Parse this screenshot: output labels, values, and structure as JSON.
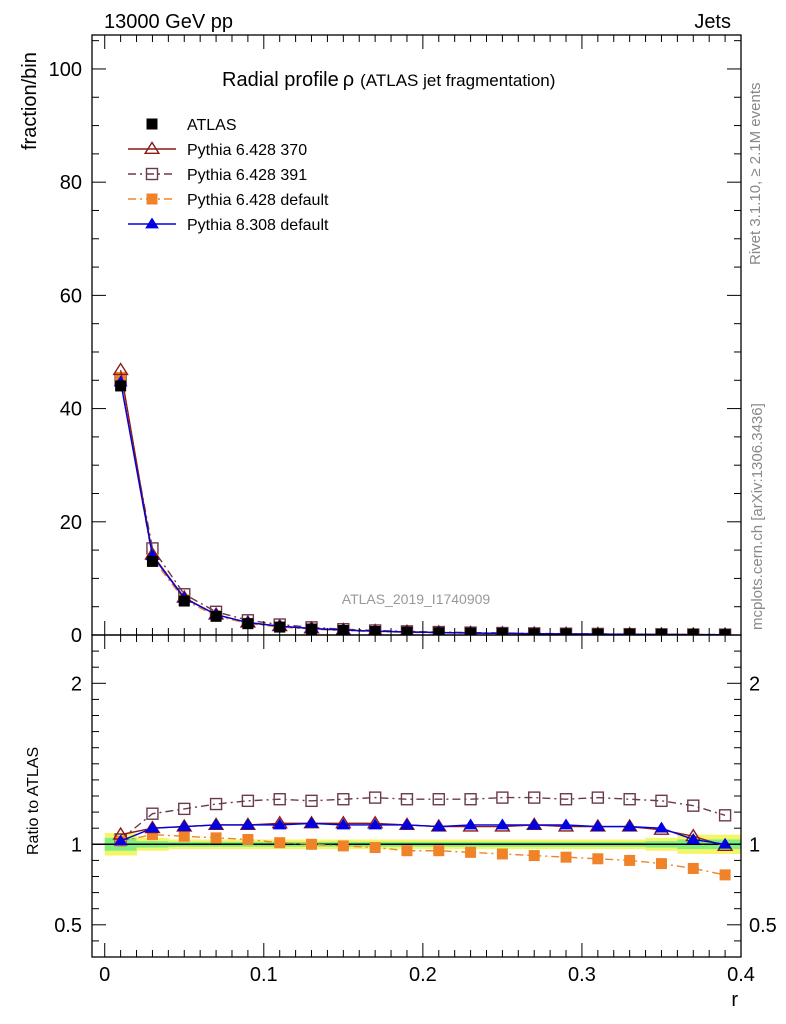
{
  "header": {
    "left": "13000 GeV pp",
    "right": "Jets"
  },
  "side_labels": {
    "rivet": "Rivet 3.1.10, ≥ 2.1M events",
    "mcplots": "mcplots.cern.ch [arXiv:1306.3436]"
  },
  "colors": {
    "atlas": "#000000",
    "p370": "#8b1a1a",
    "p391": "#6b3a4a",
    "p6def": "#f0832a",
    "p8def": "#0000e0",
    "band_green": "#7ff07f",
    "band_yellow": "#f5f56a"
  },
  "chart_data": [
    {
      "type": "line",
      "title": "Radial profile ρ (ATLAS jet fragmentation)",
      "title_main": "Radial profile",
      "title_rho": "ρ",
      "title_sub": "(ATLAS jet fragmentation)",
      "ylabel": "fraction/bin",
      "watermark": "ATLAS_2019_I1740909",
      "xlim": [
        -0.008,
        0.4
      ],
      "ylim": [
        0,
        106
      ],
      "yticks": [
        0,
        20,
        40,
        60,
        80,
        100
      ],
      "x": [
        0.01,
        0.03,
        0.05,
        0.07,
        0.09,
        0.11,
        0.13,
        0.15,
        0.17,
        0.19,
        0.21,
        0.23,
        0.25,
        0.27,
        0.29,
        0.31,
        0.33,
        0.35,
        0.37,
        0.39
      ],
      "legend": [
        "ATLAS",
        "Pythia 6.428 370",
        "Pythia 6.428 391",
        "Pythia 6.428 default",
        "Pythia 8.308 default"
      ],
      "series": [
        {
          "name": "ATLAS",
          "values": [
            44.0,
            13.0,
            6.0,
            3.3,
            2.0,
            1.4,
            1.05,
            0.8,
            0.62,
            0.5,
            0.4,
            0.33,
            0.27,
            0.22,
            0.18,
            0.15,
            0.12,
            0.1,
            0.08,
            0.06
          ]
        },
        {
          "name": "Pythia 6.428 370",
          "values": [
            46.8,
            14.2,
            6.6,
            3.6,
            2.2,
            1.55,
            1.15,
            0.88,
            0.68,
            0.55,
            0.44,
            0.36,
            0.3,
            0.24,
            0.2,
            0.16,
            0.13,
            0.1,
            0.08,
            0.06
          ]
        },
        {
          "name": "Pythia 6.428 391",
          "values": [
            45.0,
            15.3,
            7.2,
            4.1,
            2.6,
            1.85,
            1.35,
            1.02,
            0.8,
            0.64,
            0.52,
            0.42,
            0.35,
            0.28,
            0.23,
            0.19,
            0.15,
            0.12,
            0.09,
            0.07
          ]
        },
        {
          "name": "Pythia 6.428 default",
          "values": [
            45.5,
            13.5,
            6.2,
            3.35,
            2.05,
            1.4,
            1.04,
            0.78,
            0.6,
            0.48,
            0.38,
            0.31,
            0.25,
            0.2,
            0.16,
            0.13,
            0.1,
            0.08,
            0.06,
            0.05
          ]
        },
        {
          "name": "Pythia 8.308 default",
          "values": [
            44.7,
            14.0,
            6.5,
            3.6,
            2.2,
            1.55,
            1.15,
            0.87,
            0.67,
            0.54,
            0.43,
            0.35,
            0.29,
            0.24,
            0.19,
            0.16,
            0.13,
            0.1,
            0.08,
            0.06
          ]
        }
      ]
    },
    {
      "type": "line",
      "ylabel": "Ratio to ATLAS",
      "xlabel": "r",
      "xlim": [
        -0.008,
        0.4
      ],
      "ylim": [
        0.3,
        2.3
      ],
      "yticks": [
        0.5,
        1,
        2
      ],
      "ytick_labels": [
        "0.5",
        "1",
        "2"
      ],
      "xticks": [
        0,
        0.1,
        0.2,
        0.3,
        0.4
      ],
      "xtick_labels": [
        "0",
        "0.1",
        "0.2",
        "0.3",
        "0.4"
      ],
      "x": [
        0.01,
        0.03,
        0.05,
        0.07,
        0.09,
        0.11,
        0.13,
        0.15,
        0.17,
        0.19,
        0.21,
        0.23,
        0.25,
        0.27,
        0.29,
        0.31,
        0.33,
        0.35,
        0.37,
        0.39
      ],
      "band_yellow": [
        0.07,
        0.04,
        0.03,
        0.03,
        0.03,
        0.03,
        0.03,
        0.03,
        0.03,
        0.03,
        0.03,
        0.03,
        0.03,
        0.03,
        0.03,
        0.03,
        0.03,
        0.04,
        0.06,
        0.06
      ],
      "band_green": [
        0.04,
        0.02,
        0.015,
        0.015,
        0.015,
        0.015,
        0.015,
        0.015,
        0.015,
        0.015,
        0.015,
        0.015,
        0.015,
        0.015,
        0.015,
        0.015,
        0.015,
        0.02,
        0.03,
        0.03
      ],
      "series": [
        {
          "name": "Pythia 6.428 370",
          "values": [
            1.06,
            1.1,
            1.11,
            1.12,
            1.12,
            1.13,
            1.13,
            1.13,
            1.13,
            1.12,
            1.11,
            1.11,
            1.11,
            1.12,
            1.11,
            1.11,
            1.11,
            1.09,
            1.05,
            0.99
          ]
        },
        {
          "name": "Pythia 6.428 391",
          "values": [
            1.03,
            1.19,
            1.22,
            1.25,
            1.27,
            1.28,
            1.27,
            1.28,
            1.29,
            1.28,
            1.28,
            1.28,
            1.29,
            1.29,
            1.28,
            1.29,
            1.28,
            1.27,
            1.24,
            1.18
          ]
        },
        {
          "name": "Pythia 6.428 default",
          "values": [
            1.02,
            1.06,
            1.05,
            1.04,
            1.03,
            1.01,
            1.0,
            0.99,
            0.98,
            0.96,
            0.96,
            0.95,
            0.94,
            0.93,
            0.92,
            0.91,
            0.9,
            0.88,
            0.85,
            0.81
          ]
        },
        {
          "name": "Pythia 8.308 default",
          "values": [
            1.02,
            1.1,
            1.11,
            1.12,
            1.12,
            1.12,
            1.13,
            1.12,
            1.12,
            1.12,
            1.11,
            1.12,
            1.12,
            1.12,
            1.12,
            1.11,
            1.11,
            1.1,
            1.03,
            1.0
          ]
        }
      ]
    }
  ]
}
